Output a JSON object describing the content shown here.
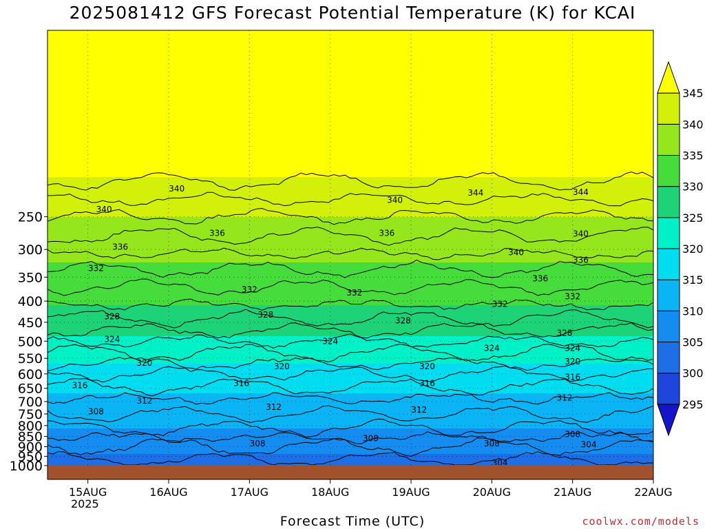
{
  "title": "2025081412 GFS Forecast Potential Temperature (K) for KCAI",
  "credit": "coolwx.com/models",
  "chart_data": {
    "type": "heatmap",
    "title": "2025081412 GFS Forecast Potential Temperature (K) for KCAI",
    "xlabel": "Forecast Time (UTC)",
    "ylabel": "",
    "x_ticks": [
      "15AUG",
      "16AUG",
      "17AUG",
      "18AUG",
      "19AUG",
      "20AUG",
      "21AUG",
      "22AUG"
    ],
    "x_sub_label": "2025",
    "x_range_days": [
      14.5,
      22.0
    ],
    "y_ticks": [
      250,
      300,
      350,
      400,
      450,
      500,
      550,
      600,
      650,
      700,
      750,
      800,
      850,
      900,
      950,
      1000
    ],
    "y_range_hpa": [
      200,
      1000
    ],
    "y_scale": "log-pressure (inverted)",
    "colorbar_levels": [
      295,
      300,
      305,
      310,
      315,
      320,
      325,
      330,
      335,
      340,
      345
    ],
    "colorbar_colors": [
      "#1414c8",
      "#1e46dc",
      "#1e6ee6",
      "#148cf0",
      "#0ab4f5",
      "#00dcf0",
      "#00f0c8",
      "#1ed278",
      "#46dc3c",
      "#96e61e",
      "#d2f00a",
      "#ffff00"
    ],
    "grid": true,
    "contour_labels": [
      {
        "value": 340,
        "day": 15.2,
        "p": 240
      },
      {
        "value": 340,
        "day": 16.1,
        "p": 214
      },
      {
        "value": 340,
        "day": 18.8,
        "p": 228
      },
      {
        "value": 344,
        "day": 19.8,
        "p": 219
      },
      {
        "value": 344,
        "day": 21.1,
        "p": 218
      },
      {
        "value": 336,
        "day": 15.4,
        "p": 296
      },
      {
        "value": 336,
        "day": 16.6,
        "p": 274
      },
      {
        "value": 336,
        "day": 18.7,
        "p": 274
      },
      {
        "value": 340,
        "day": 21.1,
        "p": 275
      },
      {
        "value": 340,
        "day": 20.3,
        "p": 305
      },
      {
        "value": 336,
        "day": 21.1,
        "p": 318
      },
      {
        "value": 332,
        "day": 15.1,
        "p": 333
      },
      {
        "value": 336,
        "day": 20.6,
        "p": 353
      },
      {
        "value": 332,
        "day": 17.0,
        "p": 375
      },
      {
        "value": 332,
        "day": 18.3,
        "p": 382
      },
      {
        "value": 332,
        "day": 21.0,
        "p": 390
      },
      {
        "value": 332,
        "day": 20.1,
        "p": 407
      },
      {
        "value": 328,
        "day": 15.3,
        "p": 436
      },
      {
        "value": 328,
        "day": 17.2,
        "p": 432
      },
      {
        "value": 328,
        "day": 18.9,
        "p": 446
      },
      {
        "value": 328,
        "day": 20.9,
        "p": 478
      },
      {
        "value": 324,
        "day": 15.3,
        "p": 495
      },
      {
        "value": 324,
        "day": 18.0,
        "p": 500
      },
      {
        "value": 324,
        "day": 20.0,
        "p": 520
      },
      {
        "value": 324,
        "day": 21.0,
        "p": 520
      },
      {
        "value": 320,
        "day": 15.7,
        "p": 565
      },
      {
        "value": 320,
        "day": 17.4,
        "p": 575
      },
      {
        "value": 320,
        "day": 19.2,
        "p": 575
      },
      {
        "value": 320,
        "day": 21.0,
        "p": 560
      },
      {
        "value": 316,
        "day": 14.9,
        "p": 640
      },
      {
        "value": 316,
        "day": 16.9,
        "p": 632
      },
      {
        "value": 316,
        "day": 19.2,
        "p": 632
      },
      {
        "value": 316,
        "day": 21.0,
        "p": 611
      },
      {
        "value": 312,
        "day": 15.7,
        "p": 697
      },
      {
        "value": 312,
        "day": 17.3,
        "p": 722
      },
      {
        "value": 312,
        "day": 19.1,
        "p": 733
      },
      {
        "value": 312,
        "day": 20.9,
        "p": 685
      },
      {
        "value": 308,
        "day": 15.1,
        "p": 740
      },
      {
        "value": 308,
        "day": 17.1,
        "p": 885
      },
      {
        "value": 308,
        "day": 18.5,
        "p": 860
      },
      {
        "value": 308,
        "day": 20.0,
        "p": 885
      },
      {
        "value": 308,
        "day": 21.0,
        "p": 840
      },
      {
        "value": 304,
        "day": 21.2,
        "p": 890
      },
      {
        "value": 304,
        "day": 20.1,
        "p": 985
      }
    ]
  }
}
